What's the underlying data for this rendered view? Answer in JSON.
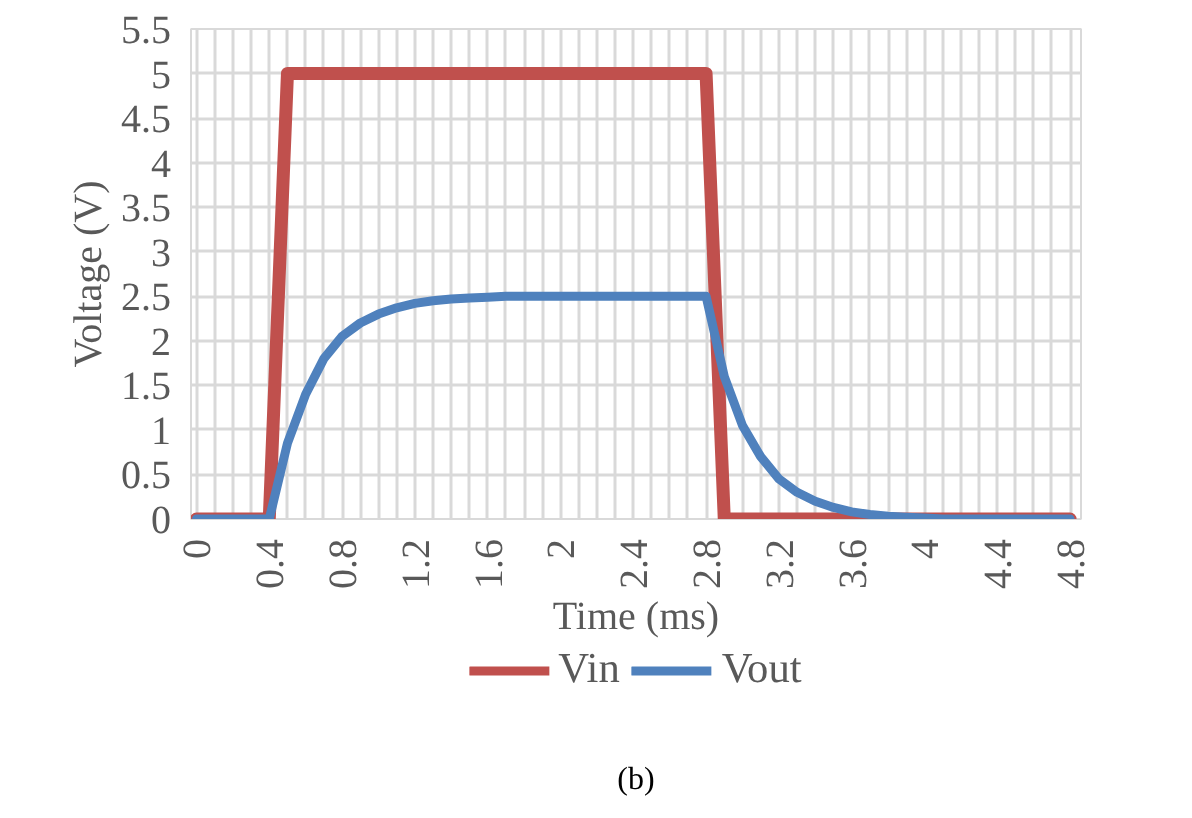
{
  "chart_data": {
    "type": "line",
    "xlabel": "Time (ms)",
    "ylabel": "Voltage (V)",
    "x": [
      0,
      0.1,
      0.2,
      0.3,
      0.4,
      0.5,
      0.6,
      0.7,
      0.8,
      0.9,
      1.0,
      1.1,
      1.2,
      1.3,
      1.4,
      1.5,
      1.6,
      1.7,
      1.8,
      1.9,
      2.0,
      2.1,
      2.2,
      2.3,
      2.4,
      2.5,
      2.6,
      2.7,
      2.8,
      2.9,
      3.0,
      3.1,
      3.2,
      3.3,
      3.4,
      3.5,
      3.6,
      3.7,
      3.8,
      3.9,
      4.0,
      4.1,
      4.2,
      4.3,
      4.4,
      4.5,
      4.6,
      4.7,
      4.8
    ],
    "series": [
      {
        "name": "Vin",
        "color": "#c0504d",
        "values": [
          0,
          0,
          0,
          0,
          0,
          5,
          5,
          5,
          5,
          5,
          5,
          5,
          5,
          5,
          5,
          5,
          5,
          5,
          5,
          5,
          5,
          5,
          5,
          5,
          5,
          5,
          5,
          5,
          5,
          0,
          0,
          0,
          0,
          0,
          0,
          0,
          0,
          0,
          0,
          0,
          0,
          0,
          0,
          0,
          0,
          0,
          0,
          0,
          0
        ]
      },
      {
        "name": "Vout",
        "color": "#4f81bd",
        "values": [
          0,
          0,
          0,
          0,
          0,
          0.85,
          1.4,
          1.8,
          2.05,
          2.2,
          2.3,
          2.37,
          2.42,
          2.45,
          2.47,
          2.48,
          2.49,
          2.5,
          2.5,
          2.5,
          2.5,
          2.5,
          2.5,
          2.5,
          2.5,
          2.5,
          2.5,
          2.5,
          2.5,
          1.6,
          1.05,
          0.7,
          0.45,
          0.3,
          0.2,
          0.13,
          0.08,
          0.05,
          0.03,
          0.02,
          0.01,
          0,
          0,
          0,
          0,
          0,
          0,
          0,
          0
        ]
      }
    ],
    "xlim": [
      -0.03,
      4.86
    ],
    "ylim": [
      0,
      5.5
    ],
    "xticks": [
      0,
      {
        "value": 0.1,
        "label": null
      },
      {
        "value": 0.2,
        "label": null
      },
      {
        "value": 0.3,
        "label": null
      },
      0.4,
      {
        "value": 0.5,
        "label": null
      },
      {
        "value": 0.6,
        "label": null
      },
      {
        "value": 0.7,
        "label": null
      },
      0.8,
      {
        "value": 0.9,
        "label": null
      },
      {
        "value": 1.0,
        "label": null
      },
      {
        "value": 1.1,
        "label": null
      },
      1.2,
      {
        "value": 1.3,
        "label": null
      },
      {
        "value": 1.4,
        "label": null
      },
      {
        "value": 1.5,
        "label": null
      },
      1.6,
      {
        "value": 1.7,
        "label": null
      },
      {
        "value": 1.8,
        "label": null
      },
      {
        "value": 1.9,
        "label": null
      },
      2,
      {
        "value": 2.1,
        "label": null
      },
      {
        "value": 2.2,
        "label": null
      },
      {
        "value": 2.3,
        "label": null
      },
      2.4,
      {
        "value": 2.5,
        "label": null
      },
      {
        "value": 2.6,
        "label": null
      },
      {
        "value": 2.7,
        "label": null
      },
      2.8,
      {
        "value": 2.9,
        "label": null
      },
      {
        "value": 3.0,
        "label": null
      },
      {
        "value": 3.1,
        "label": null
      },
      3.2,
      {
        "value": 3.3,
        "label": null
      },
      {
        "value": 3.4,
        "label": null
      },
      {
        "value": 3.5,
        "label": null
      },
      3.6,
      {
        "value": 3.7,
        "label": null
      },
      {
        "value": 3.8,
        "label": null
      },
      {
        "value": 3.9,
        "label": null
      },
      4,
      {
        "value": 4.1,
        "label": null
      },
      {
        "value": 4.2,
        "label": null
      },
      {
        "value": 4.3,
        "label": null
      },
      4.4,
      {
        "value": 4.5,
        "label": null
      },
      {
        "value": 4.6,
        "label": null
      },
      {
        "value": 4.7,
        "label": null
      },
      4.8
    ],
    "yticks": [
      0,
      0.5,
      1,
      1.5,
      2,
      2.5,
      3,
      3.5,
      4,
      4.5,
      5,
      5.5
    ],
    "grid": true,
    "legend": "bottom",
    "marker": "none",
    "line_style": "solid",
    "annotations": [
      "(b)"
    ]
  }
}
